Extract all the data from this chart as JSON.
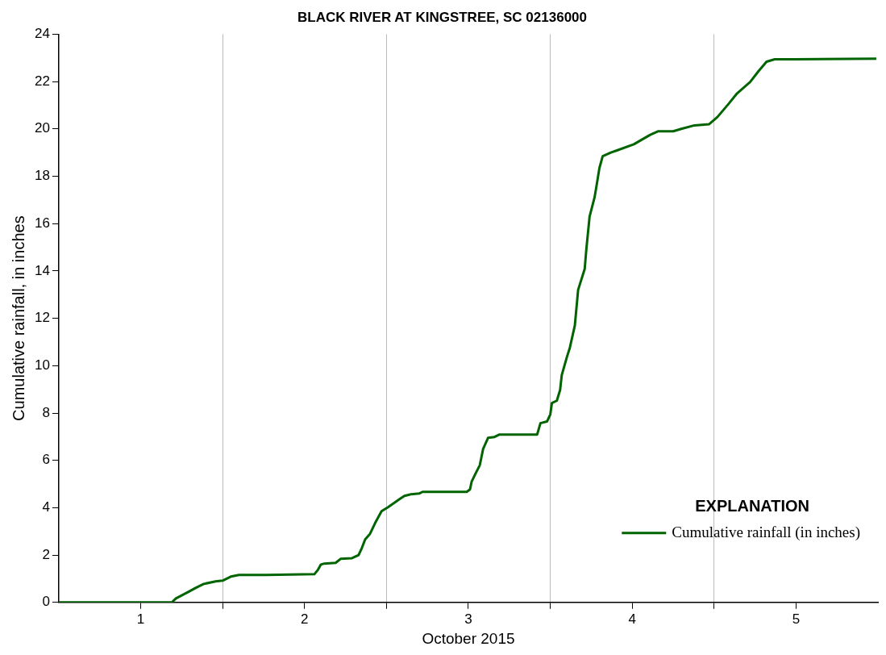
{
  "chart_data": {
    "type": "line",
    "title": "BLACK RIVER AT KINGSTREE, SC 02136000",
    "xlabel": "October 2015",
    "ylabel": "Cumulative rainfall, in inches",
    "legend_title": "EXPLANATION",
    "legend": "bottom right",
    "grid": "x",
    "line_style": "solid",
    "marker": "none",
    "xlim": [
      0.5,
      5.5
    ],
    "xticks": [
      1,
      {
        "value": 1.5,
        "label": null
      },
      2,
      {
        "value": 2.5,
        "label": null
      },
      3,
      {
        "value": 3.5,
        "label": null
      },
      4,
      {
        "value": 4.5,
        "label": null
      },
      5
    ],
    "ylim": [
      0,
      24
    ],
    "yticks": [
      0,
      2,
      4,
      6,
      8,
      10,
      12,
      14,
      16,
      18,
      20,
      22,
      24
    ],
    "series": [
      {
        "name": "Cumulative rainfall (in inches)",
        "color": "#006400",
        "x": [
          0.5,
          1.19,
          1.215,
          1.29,
          1.335,
          1.385,
          1.457,
          1.5,
          1.55,
          1.6,
          1.77,
          2.06,
          2.08,
          2.1,
          2.12,
          2.19,
          2.22,
          2.29,
          2.33,
          2.35,
          2.37,
          2.4,
          2.43,
          2.47,
          2.51,
          2.58,
          2.61,
          2.65,
          2.7,
          2.72,
          2.99,
          3.01,
          3.02,
          3.04,
          3.07,
          3.09,
          3.12,
          3.16,
          3.19,
          3.42,
          3.44,
          3.48,
          3.5,
          3.51,
          3.54,
          3.56,
          3.57,
          3.6,
          3.62,
          3.65,
          3.67,
          3.71,
          3.72,
          3.74,
          3.77,
          3.78,
          3.8,
          3.82,
          3.87,
          3.91,
          4.01,
          4.11,
          4.16,
          4.25,
          4.3,
          4.38,
          4.47,
          4.52,
          4.59,
          4.64,
          4.72,
          4.77,
          4.82,
          4.87,
          4.99,
          5.49
        ],
        "values": [
          0,
          0,
          0.17,
          0.44,
          0.61,
          0.78,
          0.89,
          0.92,
          1.09,
          1.16,
          1.16,
          1.19,
          1.36,
          1.6,
          1.64,
          1.67,
          1.84,
          1.87,
          2.0,
          2.3,
          2.66,
          2.9,
          3.34,
          3.85,
          4.02,
          4.36,
          4.5,
          4.57,
          4.6,
          4.67,
          4.67,
          4.77,
          5.1,
          5.39,
          5.8,
          6.48,
          6.95,
          6.99,
          7.09,
          7.09,
          7.57,
          7.64,
          7.94,
          8.42,
          8.52,
          8.97,
          9.6,
          10.33,
          10.77,
          11.7,
          13.2,
          14.08,
          14.9,
          16.3,
          17.1,
          17.5,
          18.35,
          18.85,
          19.0,
          19.1,
          19.35,
          19.75,
          19.9,
          19.9,
          20.0,
          20.15,
          20.2,
          20.5,
          21.07,
          21.5,
          21.98,
          22.43,
          22.84,
          22.94,
          22.94,
          22.97
        ]
      }
    ]
  }
}
